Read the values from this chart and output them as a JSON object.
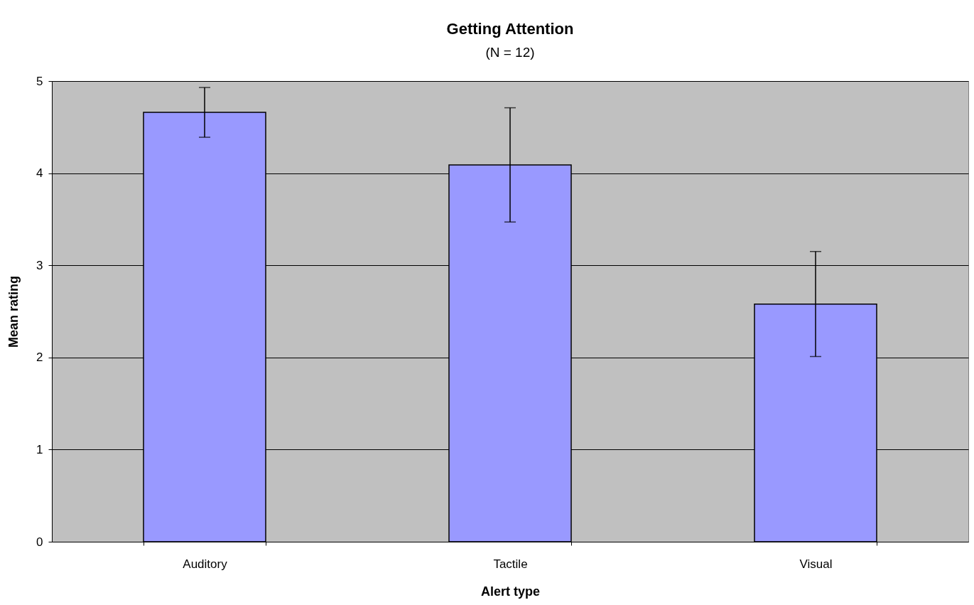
{
  "chart_data": {
    "type": "bar",
    "title": "Getting Attention",
    "subtitle": "(N = 12)",
    "xlabel": "Alert type",
    "ylabel": "Mean rating",
    "categories": [
      "Auditory",
      "Tactile",
      "Visual"
    ],
    "series": [
      {
        "color": "#9999ff",
        "values": [
          4.66,
          4.09,
          2.58
        ],
        "errors": [
          0.27,
          0.62,
          0.57
        ]
      }
    ],
    "ylim": [
      0,
      5
    ],
    "yticks": [
      0,
      1,
      2,
      3,
      4,
      5
    ],
    "grid": "y"
  }
}
